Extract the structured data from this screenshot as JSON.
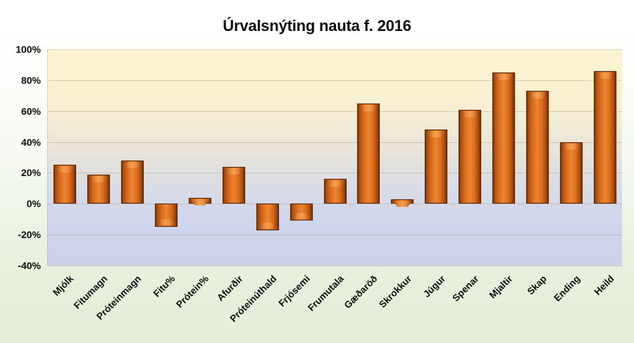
{
  "title": "Úrvalsnýting nauta f. 2016",
  "chart_data": {
    "type": "bar",
    "title": "Úrvalsnýting nauta f. 2016",
    "categories": [
      "Mjólk",
      "Fitumagn",
      "Próteinmagn",
      "Fitu%",
      "Prótein%",
      "Afurðir",
      "Próteinúthald",
      "Frjósemi",
      "Frumutala",
      "Gæðaröð",
      "Skrokkur",
      "Júgur",
      "Spenar",
      "Mjaltir",
      "Skap",
      "Ending",
      "Heild"
    ],
    "values": [
      25,
      19,
      28,
      -15,
      4,
      24,
      -17,
      -11,
      16,
      65,
      3,
      48,
      61,
      85,
      73,
      40,
      86
    ],
    "value_unit": "%",
    "xlabel": "",
    "ylabel": "",
    "ylim": [
      -40,
      100
    ],
    "ytick_step": 20,
    "ytick_labels": [
      "100%",
      "80%",
      "60%",
      "40%",
      "20%",
      "0%",
      "-20%",
      "-40%"
    ],
    "grid": true,
    "legend": false,
    "colors": {
      "bar_fill": "#DA6D1D",
      "bar_highlight": "#F79C4E",
      "bar_edge": "#5E2805",
      "plot_bg_top": "#FCF3D1",
      "plot_bg_middle": "#E8E4D9",
      "plot_bg_bottom": "#CBD2EA",
      "page_bg_top": "#FFFFFF",
      "page_bg_bottom": "#E3EDD9",
      "text": "#0D0D0D"
    }
  }
}
